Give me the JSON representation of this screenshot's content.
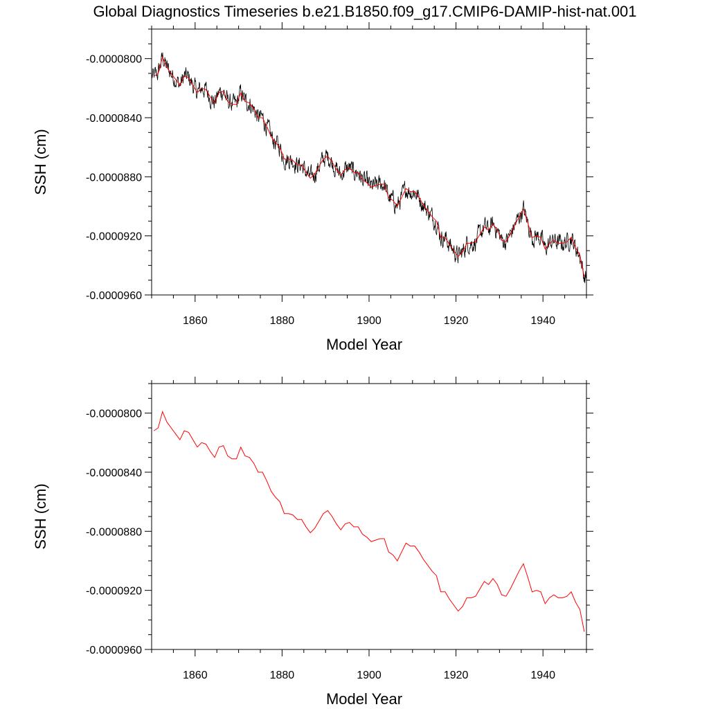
{
  "title": "Global Diagnostics Timeseries b.e21.B1850.f09_g17.CMIP6-DAMIP-hist-nat.001",
  "colors": {
    "monthly": "#000000",
    "annual": "#ff0000",
    "frame": "#000000"
  },
  "chart_data": [
    {
      "type": "line",
      "xlabel": "Model Year",
      "ylabel": "SSH (cm)",
      "xlim": [
        1850,
        1950
      ],
      "ylim": [
        -9.6e-05,
        -7.8e-05
      ],
      "xticks": [
        1860,
        1880,
        1900,
        1920,
        1940
      ],
      "xtick_labels": [
        "1860",
        "1880",
        "1900",
        "1920",
        "1940"
      ],
      "yticks": [
        -9.6e-05,
        -9.2e-05,
        -8.8e-05,
        -8.4e-05,
        -8e-05
      ],
      "ytick_labels": [
        "-0.0000960",
        "-0.0000920",
        "-0.0000880",
        "-0.0000840",
        "-0.0000800"
      ],
      "grid": false,
      "series": [
        {
          "kind": "monthly",
          "color": "#000000"
        },
        {
          "kind": "annual",
          "color": "#ff0000"
        }
      ]
    },
    {
      "type": "line",
      "xlabel": "Model Year",
      "ylabel": "SSH (cm)",
      "xlim": [
        1850,
        1950
      ],
      "ylim": [
        -9.6e-05,
        -7.8e-05
      ],
      "xticks": [
        1860,
        1880,
        1900,
        1920,
        1940
      ],
      "xtick_labels": [
        "1860",
        "1880",
        "1900",
        "1920",
        "1940"
      ],
      "yticks": [
        -9.6e-05,
        -9.2e-05,
        -8.8e-05,
        -8.4e-05,
        -8e-05
      ],
      "ytick_labels": [
        "-0.0000960",
        "-0.0000920",
        "-0.0000880",
        "-0.0000840",
        "-0.0000800"
      ],
      "grid": false,
      "series": [
        {
          "kind": "annual",
          "color": "#ff0000"
        }
      ]
    }
  ],
  "annual": {
    "x": [
      1850.5,
      1851.5,
      1852.5,
      1853.5,
      1854.5,
      1855.5,
      1856.5,
      1857.5,
      1858.5,
      1859.5,
      1860.5,
      1861.5,
      1862.5,
      1863.5,
      1864.5,
      1865.5,
      1866.5,
      1867.5,
      1868.5,
      1869.5,
      1870.5,
      1871.5,
      1872.5,
      1873.5,
      1874.5,
      1875.5,
      1876.5,
      1877.5,
      1878.5,
      1879.5,
      1880.5,
      1881.5,
      1882.5,
      1883.5,
      1884.5,
      1885.5,
      1886.5,
      1887.5,
      1888.5,
      1889.5,
      1890.5,
      1891.5,
      1892.5,
      1893.5,
      1894.5,
      1895.5,
      1896.5,
      1897.5,
      1898.5,
      1899.5,
      1900.5,
      1901.5,
      1902.5,
      1903.5,
      1904.5,
      1905.5,
      1906.5,
      1907.5,
      1908.5,
      1909.5,
      1910.5,
      1911.5,
      1912.5,
      1913.5,
      1914.5,
      1915.5,
      1916.5,
      1917.5,
      1918.5,
      1919.5,
      1920.5,
      1921.5,
      1922.5,
      1923.5,
      1924.5,
      1925.5,
      1926.5,
      1927.5,
      1928.5,
      1929.5,
      1930.5,
      1931.5,
      1932.5,
      1933.5,
      1934.5,
      1935.5,
      1936.5,
      1937.5,
      1938.5,
      1939.5,
      1940.5,
      1941.5,
      1942.5,
      1943.5,
      1944.5,
      1945.5,
      1946.5,
      1947.5,
      1948.5,
      1949.5
    ],
    "y": [
      -8.12e-05,
      -8.1e-05,
      -7.99e-05,
      -8.06e-05,
      -8.1e-05,
      -8.14e-05,
      -8.18e-05,
      -8.12e-05,
      -8.13e-05,
      -8.18e-05,
      -8.23e-05,
      -8.2e-05,
      -8.21e-05,
      -8.26e-05,
      -8.3e-05,
      -8.23e-05,
      -8.22e-05,
      -8.29e-05,
      -8.31e-05,
      -8.31e-05,
      -8.23e-05,
      -8.29e-05,
      -8.3e-05,
      -8.34e-05,
      -8.4e-05,
      -8.4e-05,
      -8.46e-05,
      -8.53e-05,
      -8.57e-05,
      -8.6e-05,
      -8.68e-05,
      -8.68e-05,
      -8.69e-05,
      -8.72e-05,
      -8.72e-05,
      -8.77e-05,
      -8.81e-05,
      -8.78e-05,
      -8.73e-05,
      -8.68e-05,
      -8.66e-05,
      -8.7e-05,
      -8.75e-05,
      -8.79e-05,
      -8.75e-05,
      -8.74e-05,
      -8.77e-05,
      -8.77e-05,
      -8.82e-05,
      -8.84e-05,
      -8.87e-05,
      -8.86e-05,
      -8.85e-05,
      -8.85e-05,
      -8.94e-05,
      -8.96e-05,
      -9e-05,
      -8.94e-05,
      -8.88e-05,
      -8.9e-05,
      -8.9e-05,
      -8.94e-05,
      -8.99e-05,
      -9.03e-05,
      -9.07e-05,
      -9.1e-05,
      -9.21e-05,
      -9.21e-05,
      -9.26e-05,
      -9.3e-05,
      -9.34e-05,
      -9.31e-05,
      -9.25e-05,
      -9.25e-05,
      -9.24e-05,
      -9.19e-05,
      -9.14e-05,
      -9.16e-05,
      -9.12e-05,
      -9.16e-05,
      -9.23e-05,
      -9.24e-05,
      -9.19e-05,
      -9.13e-05,
      -9.07e-05,
      -9.02e-05,
      -9.11e-05,
      -9.21e-05,
      -9.2e-05,
      -9.21e-05,
      -9.29e-05,
      -9.25e-05,
      -9.23e-05,
      -9.25e-05,
      -9.25e-05,
      -9.24e-05,
      -9.21e-05,
      -9.28e-05,
      -9.33e-05,
      -9.48e-05
    ]
  }
}
